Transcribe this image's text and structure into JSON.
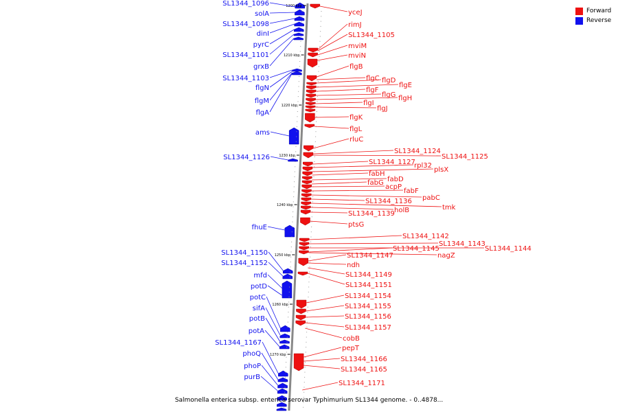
{
  "colors": {
    "forward": "#ee1111",
    "reverse": "#1111ee",
    "backbone": "#888888"
  },
  "legend": {
    "forward_label": "Forward",
    "reverse_label": "Reverse"
  },
  "caption": "Salmonella enterica subsp. enterica serovar Typhimurium SL1344 genome. - 0..4878...",
  "ticks": [
    "1200 kbp",
    "1210 kbp",
    "1220 kbp",
    "1230 kbp",
    "1240 kbp",
    "1250 kbp",
    "1260 kbp",
    "1270 kbp"
  ],
  "reverse_genes": [
    "SL1344_1096",
    "solA",
    "SL1344_1098",
    "dinI",
    "pyrC",
    "SL1344_1101",
    "grxB",
    "SL1344_1103",
    "flgN",
    "flgM",
    "flgA",
    "ams",
    "SL1344_1126",
    "fhuE",
    "SL1344_1150",
    "SL1344_1152",
    "mfd",
    "potD",
    "potC",
    "sifA",
    "potB",
    "potA",
    "SL1344_1167",
    "phoQ",
    "phoP",
    "purB"
  ],
  "forward_genes": [
    "yceJ",
    "rimJ",
    "SL1344_1105",
    "mviM",
    "mviN",
    "flgB",
    "flgC",
    "flgD",
    "flgE",
    "flgF",
    "flgG",
    "flgH",
    "flgI",
    "flgJ",
    "flgK",
    "flgL",
    "rluC",
    "SL1344_1124",
    "SL1344_1125",
    "SL1344_1127",
    "rpl32",
    "plsX",
    "fabH",
    "fabD",
    "fabG",
    "acpP",
    "fabF",
    "pabC",
    "SL1344_1136",
    "tmk",
    "holB",
    "SL1344_1139",
    "ptsG",
    "SL1344_1142",
    "SL1344_1143",
    "SL1344_1144",
    "SL1344_1145",
    "nagZ",
    "SL1344_1147",
    "ndh",
    "SL1344_1149",
    "SL1344_1151",
    "SL1344_1154",
    "SL1344_1155",
    "SL1344_1156",
    "SL1344_1157",
    "cobB",
    "pepT",
    "SL1344_1166",
    "SL1344_1165",
    "SL1344_1171"
  ]
}
